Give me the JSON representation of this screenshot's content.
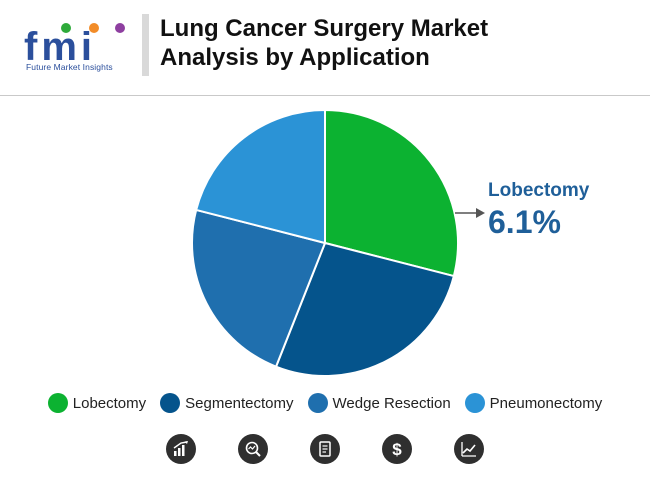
{
  "brand": {
    "letters": "fmi",
    "tagline": "Future Market Insights"
  },
  "header": {
    "title_line1": "Lung Cancer Surgery Market",
    "title_line2": "Analysis by Application"
  },
  "callout": {
    "label": "Lobectomy",
    "value": "6.1%"
  },
  "chart_data": {
    "type": "pie",
    "title": "Lung Cancer Surgery Market Analysis by Application",
    "slices": [
      {
        "label": "Lobectomy",
        "value": 29,
        "color": "#0cb231"
      },
      {
        "label": "Segmentectomy",
        "value": 27,
        "color": "#05548c"
      },
      {
        "label": "Wedge Resection",
        "value": 23,
        "color": "#1f6fae"
      },
      {
        "label": "Pneumonectomy",
        "value": 21,
        "color": "#2b93d6"
      }
    ],
    "annotations": [
      {
        "target": "Lobectomy",
        "text": "6.1%"
      }
    ],
    "legend": "bottom"
  },
  "icons": [
    {
      "name": "growth-bars-icon"
    },
    {
      "name": "analysis-magnifier-icon"
    },
    {
      "name": "document-report-icon"
    },
    {
      "name": "dollar-icon"
    },
    {
      "name": "trend-chart-icon"
    }
  ],
  "colors": {
    "brand_blue": "#2b4f9c",
    "callout_blue": "#1f5f99",
    "icon_dark": "#2f2f2f"
  }
}
